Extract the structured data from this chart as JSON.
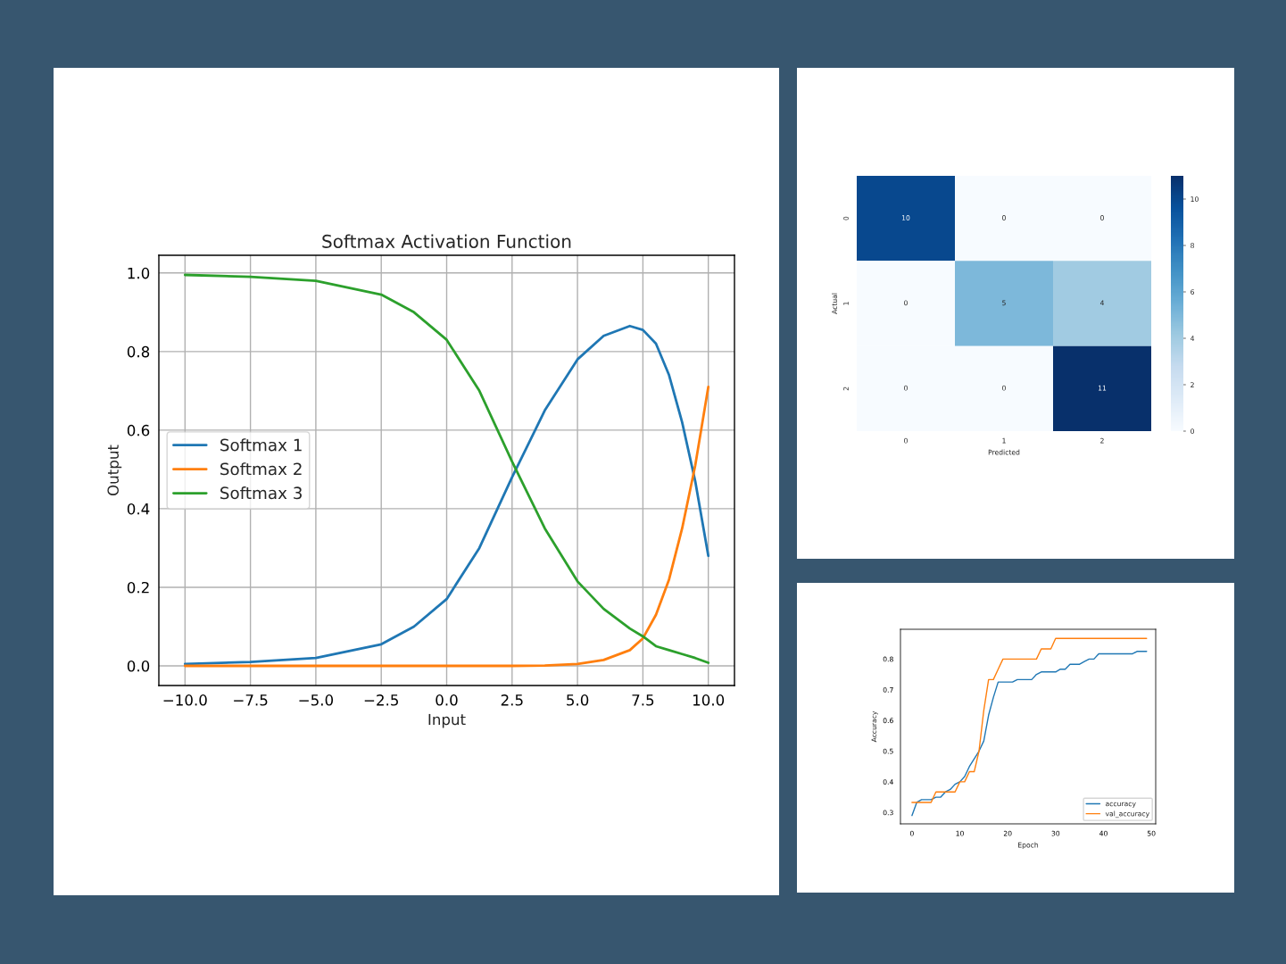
{
  "chart_data": [
    {
      "type": "line",
      "title": "Softmax Activation Function",
      "xlabel": "Input",
      "ylabel": "Output",
      "grid": true,
      "legend": "center left",
      "x": [
        -10,
        -7.5,
        -5,
        -2.5,
        -1.25,
        0,
        1.25,
        2.5,
        3.75,
        5,
        6,
        7,
        7.5,
        8,
        8.5,
        9,
        9.5,
        10
      ],
      "series": [
        {
          "name": "Softmax 1",
          "color": "#1f77b4",
          "values": [
            0.005,
            0.01,
            0.02,
            0.055,
            0.1,
            0.17,
            0.3,
            0.48,
            0.65,
            0.78,
            0.84,
            0.865,
            0.855,
            0.82,
            0.74,
            0.62,
            0.47,
            0.28
          ]
        },
        {
          "name": "Softmax 2",
          "color": "#ff7f0e",
          "values": [
            0,
            0,
            0,
            0,
            0,
            0,
            0,
            0,
            0.001,
            0.005,
            0.015,
            0.04,
            0.07,
            0.13,
            0.22,
            0.35,
            0.51,
            0.71
          ]
        },
        {
          "name": "Softmax 3",
          "color": "#2ca02c",
          "values": [
            0.995,
            0.99,
            0.98,
            0.945,
            0.9,
            0.83,
            0.7,
            0.52,
            0.35,
            0.215,
            0.145,
            0.095,
            0.075,
            0.05,
            0.04,
            0.03,
            0.02,
            0.008
          ]
        }
      ],
      "xlim": [
        -11,
        11
      ],
      "ylim": [
        -0.05,
        1.045
      ],
      "xticks": [
        {
          "value": -10,
          "label": "−10.0"
        },
        {
          "value": -7.5,
          "label": "−7.5"
        },
        {
          "value": -5,
          "label": "−5.0"
        },
        {
          "value": -2.5,
          "label": "−2.5"
        },
        {
          "value": 0,
          "label": "0.0"
        },
        {
          "value": 2.5,
          "label": "2.5"
        },
        {
          "value": 5,
          "label": "5.0"
        },
        {
          "value": 7.5,
          "label": "7.5"
        },
        {
          "value": 10,
          "label": "10.0"
        }
      ],
      "yticks": [
        {
          "value": 0,
          "label": "0.0"
        },
        {
          "value": 0.2,
          "label": "0.2"
        },
        {
          "value": 0.4,
          "label": "0.4"
        },
        {
          "value": 0.6,
          "label": "0.6"
        },
        {
          "value": 0.8,
          "label": "0.8"
        },
        {
          "value": 1,
          "label": "1.0"
        }
      ]
    },
    {
      "type": "heatmap",
      "xlabel": "Predicted",
      "ylabel": "Actual",
      "categories": [
        "0",
        "1",
        "2"
      ],
      "y_categories": [
        "0",
        "1",
        "2"
      ],
      "cells": [
        [
          10,
          0,
          0
        ],
        [
          0,
          5,
          4
        ],
        [
          0,
          0,
          11
        ]
      ],
      "data_labels": true,
      "clim": [
        0,
        11
      ],
      "cticks": [
        0,
        2,
        4,
        6,
        8,
        10
      ]
    },
    {
      "type": "line",
      "xlabel": "Epoch",
      "ylabel": "Accuracy",
      "legend": "lower right",
      "x": [
        0,
        1,
        2,
        3,
        4,
        5,
        6,
        7,
        8,
        9,
        10,
        11,
        12,
        13,
        14,
        15,
        16,
        17,
        18,
        19,
        20,
        21,
        22,
        23,
        24,
        25,
        26,
        27,
        28,
        29,
        30,
        31,
        32,
        33,
        34,
        35,
        36,
        37,
        38,
        39,
        40,
        41,
        42,
        43,
        44,
        45,
        46,
        47,
        48,
        49
      ],
      "series": [
        {
          "name": "accuracy",
          "color": "#1f77b4",
          "values": [
            0.29,
            0.333,
            0.342,
            0.342,
            0.342,
            0.35,
            0.35,
            0.367,
            0.375,
            0.392,
            0.4,
            0.417,
            0.45,
            0.475,
            0.5,
            0.533,
            0.617,
            0.675,
            0.725,
            0.725,
            0.725,
            0.725,
            0.733,
            0.733,
            0.733,
            0.733,
            0.75,
            0.758,
            0.758,
            0.758,
            0.758,
            0.767,
            0.767,
            0.783,
            0.783,
            0.783,
            0.792,
            0.8,
            0.8,
            0.817,
            0.817,
            0.817,
            0.817,
            0.817,
            0.817,
            0.817,
            0.817,
            0.825,
            0.825,
            0.825
          ]
        },
        {
          "name": "val_accuracy",
          "color": "#ff7f0e",
          "values": [
            0.333,
            0.333,
            0.333,
            0.333,
            0.333,
            0.367,
            0.367,
            0.367,
            0.367,
            0.367,
            0.4,
            0.4,
            0.433,
            0.433,
            0.5,
            0.633,
            0.733,
            0.733,
            0.767,
            0.8,
            0.8,
            0.8,
            0.8,
            0.8,
            0.8,
            0.8,
            0.8,
            0.833,
            0.833,
            0.833,
            0.867,
            0.867,
            0.867,
            0.867,
            0.867,
            0.867,
            0.867,
            0.867,
            0.867,
            0.867,
            0.867,
            0.867,
            0.867,
            0.867,
            0.867,
            0.867,
            0.867,
            0.867,
            0.867,
            0.867
          ]
        }
      ],
      "xlim": [
        -2.4,
        50.9
      ],
      "ylim": [
        0.263,
        0.897
      ],
      "xticks": [
        0,
        10,
        20,
        30,
        40,
        50
      ],
      "yticks": [
        0.3,
        0.4,
        0.5,
        0.6,
        0.7,
        0.8
      ]
    }
  ]
}
